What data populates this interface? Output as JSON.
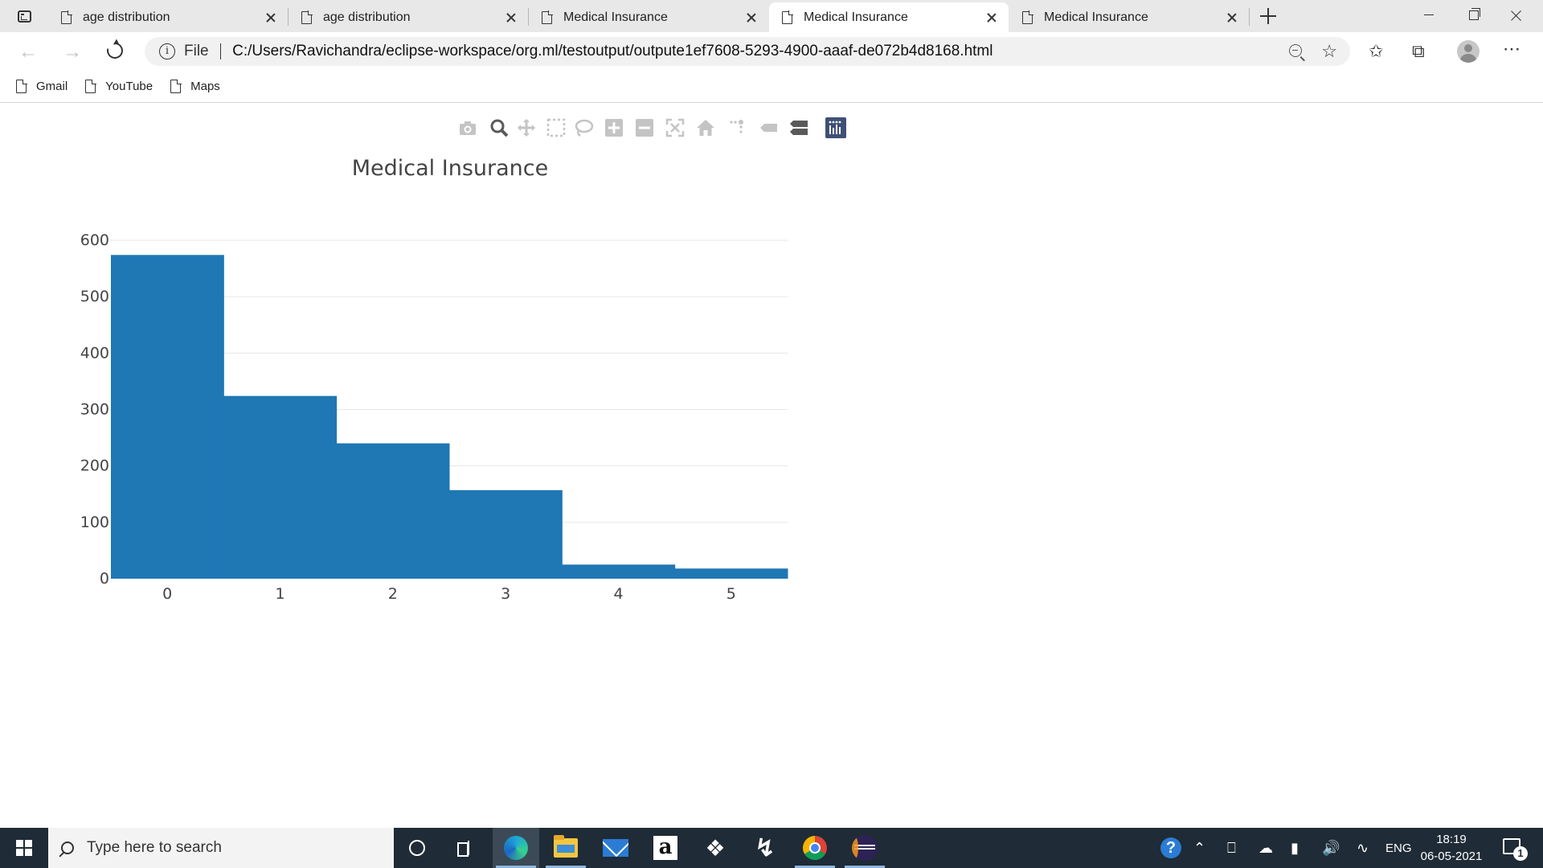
{
  "browser": {
    "tabs": [
      {
        "title": "age distribution",
        "active": false
      },
      {
        "title": "age distribution",
        "active": false
      },
      {
        "title": "Medical Insurance",
        "active": false
      },
      {
        "title": "Medical Insurance",
        "active": true
      },
      {
        "title": "Medical Insurance",
        "active": false
      }
    ],
    "address": {
      "scheme": "File",
      "url": "C:/Users/Ravichandra/eclipse-workspace/org.ml/testoutput/outpute1ef7608-5293-4900-aaaf-de072b4d8168.html"
    },
    "bookmarks": [
      "Gmail",
      "YouTube",
      "Maps"
    ]
  },
  "modebar": {
    "icons": [
      "camera-icon",
      "zoom-icon",
      "pan-icon",
      "box-select-icon",
      "lasso-select-icon",
      "zoom-in-icon",
      "zoom-out-icon",
      "autoscale-icon",
      "reset-axes-icon",
      "spike-lines-icon",
      "hover-closest-icon",
      "hover-compare-icon",
      "plotly-logo-icon"
    ]
  },
  "chart_data": {
    "type": "bar",
    "title": "Medical Insurance",
    "categories": [
      "0",
      "1",
      "2",
      "3",
      "4",
      "5"
    ],
    "values": [
      574,
      324,
      240,
      157,
      25,
      18
    ],
    "ylim": [
      0,
      600
    ],
    "yticks": [
      0,
      100,
      200,
      300,
      400,
      500,
      600
    ],
    "bar_color": "#1f77b4",
    "grid": true,
    "bargap": 0
  },
  "taskbar": {
    "search_placeholder": "Type here to search",
    "language": "ENG",
    "time": "18:19",
    "date": "06-05-2021",
    "notification_count": "1"
  }
}
